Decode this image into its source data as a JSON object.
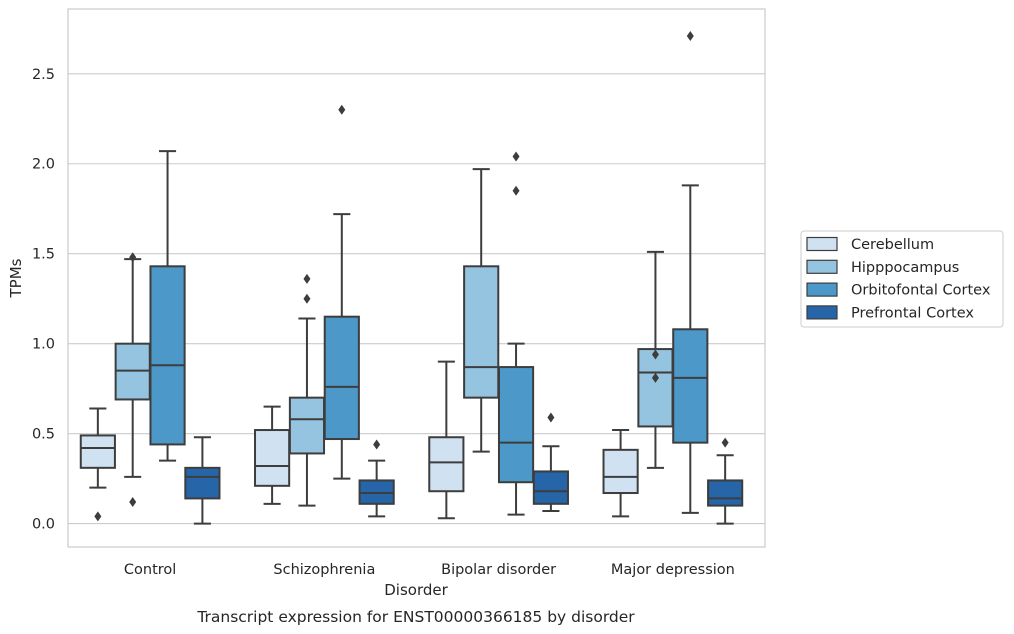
{
  "chart_data": {
    "type": "box",
    "xlabel": "Disorder",
    "ylabel": "TPMs",
    "caption": "Transcript expression for ENST00000366185 by disorder",
    "ylim": [
      -0.13,
      2.86
    ],
    "yticks": [
      0.0,
      0.5,
      1.0,
      1.5,
      2.0,
      2.5
    ],
    "ytick_labels": [
      "0.0",
      "0.5",
      "1.0",
      "1.5",
      "2.0",
      "2.5"
    ],
    "grid": "horizontal",
    "legend_position": "right",
    "categories": [
      "Control",
      "Schizophrenia",
      "Bipolar disorder",
      "Major depression"
    ],
    "series": [
      {
        "name": "Cerebellum",
        "color": "#d0e1f2",
        "boxes": [
          {
            "q1": 0.31,
            "median": 0.42,
            "q3": 0.49,
            "whisker_low": 0.2,
            "whisker_high": 0.64,
            "outliers": [
              0.04
            ]
          },
          {
            "q1": 0.21,
            "median": 0.32,
            "q3": 0.52,
            "whisker_low": 0.11,
            "whisker_high": 0.65,
            "outliers": []
          },
          {
            "q1": 0.18,
            "median": 0.34,
            "q3": 0.48,
            "whisker_low": 0.03,
            "whisker_high": 0.9,
            "outliers": []
          },
          {
            "q1": 0.17,
            "median": 0.26,
            "q3": 0.41,
            "whisker_low": 0.04,
            "whisker_high": 0.52,
            "outliers": []
          }
        ]
      },
      {
        "name": "Hipppocampus",
        "color": "#94c4df",
        "boxes": [
          {
            "q1": 0.69,
            "median": 0.85,
            "q3": 1.0,
            "whisker_low": 0.26,
            "whisker_high": 1.47,
            "outliers": [
              0.12,
              1.48
            ]
          },
          {
            "q1": 0.39,
            "median": 0.58,
            "q3": 0.7,
            "whisker_low": 0.1,
            "whisker_high": 1.14,
            "outliers": [
              1.25,
              1.36
            ]
          },
          {
            "q1": 0.7,
            "median": 0.87,
            "q3": 1.43,
            "whisker_low": 0.4,
            "whisker_high": 1.97,
            "outliers": []
          },
          {
            "q1": 0.54,
            "median": 0.84,
            "q3": 0.97,
            "whisker_low": 0.31,
            "whisker_high": 1.51,
            "outliers": [
              0.81,
              0.94
            ]
          }
        ]
      },
      {
        "name": "Orbitofontal Cortex",
        "color": "#4b98c9",
        "boxes": [
          {
            "q1": 0.44,
            "median": 0.88,
            "q3": 1.43,
            "whisker_low": 0.35,
            "whisker_high": 2.07,
            "outliers": []
          },
          {
            "q1": 0.47,
            "median": 0.76,
            "q3": 1.15,
            "whisker_low": 0.25,
            "whisker_high": 1.72,
            "outliers": [
              2.3
            ]
          },
          {
            "q1": 0.23,
            "median": 0.45,
            "q3": 0.87,
            "whisker_low": 0.05,
            "whisker_high": 1.0,
            "outliers": [
              1.85,
              2.04
            ]
          },
          {
            "q1": 0.45,
            "median": 0.81,
            "q3": 1.08,
            "whisker_low": 0.06,
            "whisker_high": 1.88,
            "outliers": [
              2.71
            ]
          }
        ]
      },
      {
        "name": "Prefrontal Cortex",
        "color": "#2565a8",
        "boxes": [
          {
            "q1": 0.14,
            "median": 0.26,
            "q3": 0.31,
            "whisker_low": 0.0,
            "whisker_high": 0.48,
            "outliers": []
          },
          {
            "q1": 0.11,
            "median": 0.17,
            "q3": 0.24,
            "whisker_low": 0.04,
            "whisker_high": 0.35,
            "outliers": [
              0.44
            ]
          },
          {
            "q1": 0.11,
            "median": 0.18,
            "q3": 0.29,
            "whisker_low": 0.07,
            "whisker_high": 0.43,
            "outliers": [
              0.59
            ]
          },
          {
            "q1": 0.1,
            "median": 0.14,
            "q3": 0.24,
            "whisker_low": 0.0,
            "whisker_high": 0.38,
            "outliers": [
              0.45
            ]
          }
        ]
      }
    ]
  }
}
